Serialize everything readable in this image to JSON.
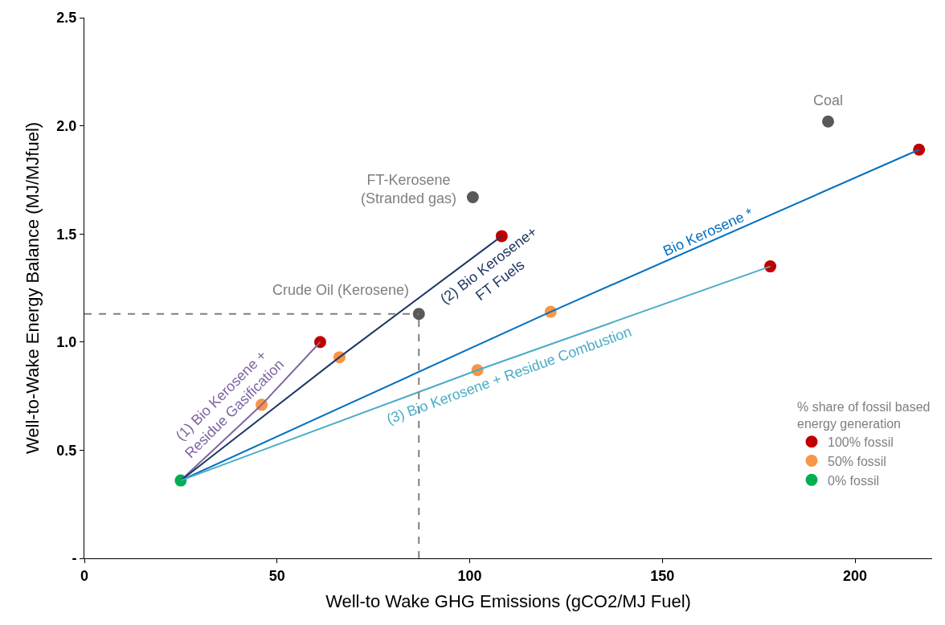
{
  "chart_data": {
    "type": "line",
    "xlabel": "Well-to Wake GHG Emissions (gCO2/MJ Fuel)",
    "ylabel": "Well-to-Wake Energy Balance (MJ/MJfuel)",
    "legend_title": "% share of fossil based\nenergy generation",
    "xlim": [
      0,
      220
    ],
    "xticks": [
      0,
      50,
      100,
      150,
      200
    ],
    "ylim": [
      0,
      2.5
    ],
    "yticks": [
      {
        "value": 0,
        "label": "-"
      },
      {
        "value": 0.5,
        "label": "0.5"
      },
      {
        "value": 1.0,
        "label": "1.0"
      },
      {
        "value": 1.5,
        "label": "1.5"
      },
      {
        "value": 2.0,
        "label": "2.0"
      },
      {
        "value": 2.5,
        "label": "2.5"
      }
    ],
    "legend": "bottom right",
    "marker": "none",
    "series": [
      {
        "name": "(1) Bio Kerosene +\nResidue Gasification",
        "color": "#8064a2",
        "x": [
          25,
          46,
          61.2
        ],
        "values": [
          0.36,
          0.71,
          1.0
        ]
      },
      {
        "name": "(2) Bio Kerosene+\nFT Fuels",
        "color": "#1f3864",
        "x": [
          25,
          66.2,
          108.3
        ],
        "values": [
          0.36,
          0.93,
          1.49
        ]
      },
      {
        "name": "Bio Kerosene *",
        "color": "#0070c0",
        "x": [
          25,
          121,
          216.6
        ],
        "values": [
          0.36,
          1.14,
          1.89
        ]
      },
      {
        "name": "(3) Bio Kerosene + Residue Combustion",
        "color": "#4bacc6",
        "x": [
          25,
          102,
          178
        ],
        "values": [
          0.36,
          0.87,
          1.35
        ]
      },
      {
        "color": "#7f7f7f",
        "line_style": "dashed",
        "x": [
          0,
          86.8
        ],
        "values": [
          1.13,
          1.13
        ]
      },
      {
        "color": "#7f7f7f",
        "line_style": "dashed",
        "x": [
          86.8,
          86.8
        ],
        "values": [
          0,
          1.13
        ]
      },
      {
        "type": "scatter",
        "marker": "circle",
        "color": "#595959",
        "x": [
          86.8,
          100.8,
          193
        ],
        "values": [
          1.13,
          1.67,
          2.02
        ]
      },
      {
        "type": "scatter",
        "marker": "circle",
        "name": "100% fossil",
        "color": "#c00000",
        "x": [
          61.2,
          108.3,
          216.6,
          178
        ],
        "values": [
          1.0,
          1.49,
          1.89,
          1.35
        ]
      },
      {
        "type": "scatter",
        "marker": "circle",
        "name": "50% fossil",
        "color": "#f79646",
        "x": [
          46,
          66.2,
          121,
          102
        ],
        "values": [
          0.71,
          0.93,
          1.14,
          0.87
        ]
      },
      {
        "type": "scatter",
        "marker": "circle",
        "name": "0% fossil",
        "color": "#00b050",
        "x": [
          25
        ],
        "values": [
          0.36
        ]
      }
    ],
    "annotations": [
      {
        "text": "Crude Oil (Kerosene)",
        "x": 86.8,
        "y": 1.13
      },
      {
        "text": "FT-Kerosene\n(Stranded gas)",
        "x": 100.8,
        "y": 1.67
      },
      {
        "text": "Coal",
        "x": 193,
        "y": 2.02
      }
    ]
  }
}
